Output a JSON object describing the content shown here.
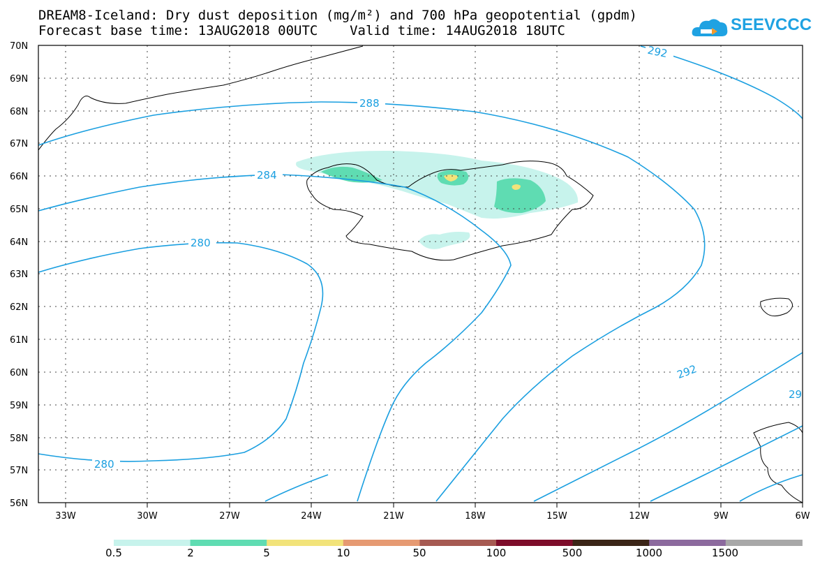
{
  "title_line1": "DREAM8-Iceland: Dry dust deposition (mg/m²) and 700 hPa geopotential (gpdm)",
  "title_line2": "Forecast base time: 13AUG2018 00UTC    Valid time: 14AUG2018 18UTC",
  "logo_text": "SEEVCCC",
  "lat_labels": [
    "70N",
    "69N",
    "68N",
    "67N",
    "66N",
    "65N",
    "64N",
    "63N",
    "62N",
    "61N",
    "60N",
    "59N",
    "58N",
    "57N",
    "56N"
  ],
  "lon_labels": [
    "33W",
    "30W",
    "27W",
    "24W",
    "21W",
    "18W",
    "15W",
    "12W",
    "9W",
    "6W"
  ],
  "contour_labels": [
    "292",
    "288",
    "284",
    "280",
    "280",
    "292",
    "29"
  ],
  "colorbar": {
    "ticks": [
      "0.5",
      "2",
      "5",
      "10",
      "50",
      "100",
      "500",
      "1000",
      "1500"
    ],
    "colors": [
      "#c7f3ec",
      "#5fdcb2",
      "#f2e37a",
      "#e69a72",
      "#a65a52",
      "#7d0c2a",
      "#3b2517",
      "#8c6a9e",
      "#a8a8a8"
    ]
  },
  "colors": {
    "contour": "#1a9fe0",
    "coast": "#000000",
    "grid": "#444444"
  }
}
